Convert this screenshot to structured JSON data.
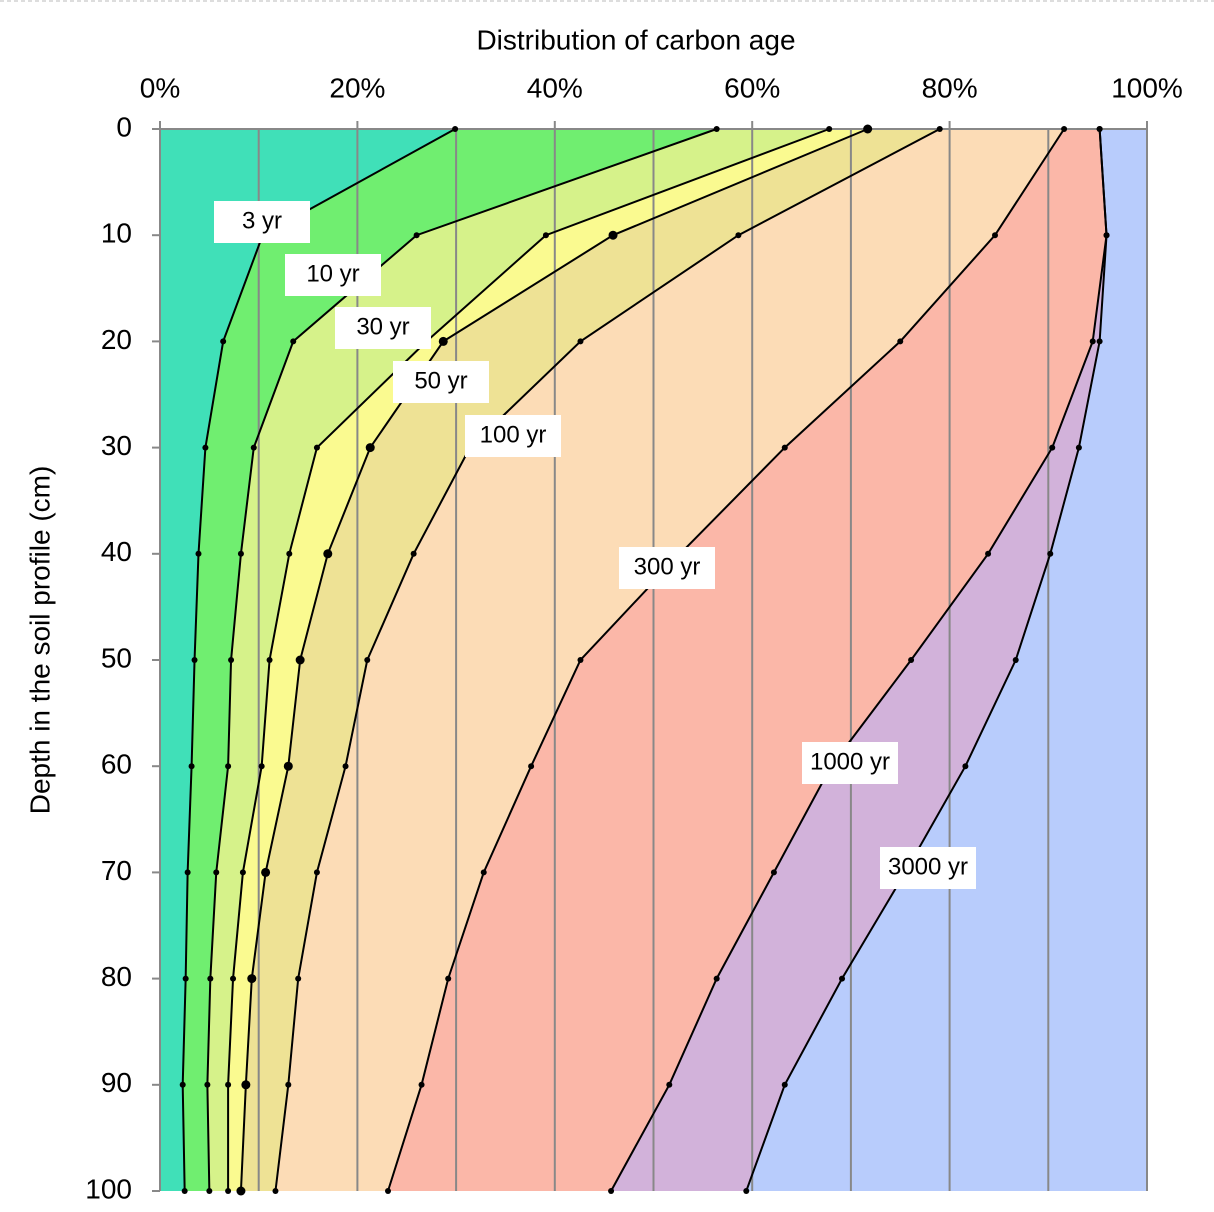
{
  "chart_data": {
    "type": "stacked-depth-lines",
    "title": "Distribution of carbon age",
    "y_label": "Depth in the soil profile (cm)",
    "x": [
      0,
      10,
      20,
      30,
      40,
      50,
      60,
      70,
      80,
      90,
      100
    ],
    "xlim": [
      0,
      100
    ],
    "xticks": [
      {
        "value": 0,
        "label": "0%"
      },
      {
        "value": 20,
        "label": "20%"
      },
      {
        "value": 40,
        "label": "40%"
      },
      {
        "value": 60,
        "label": "60%"
      },
      {
        "value": 80,
        "label": "80%"
      },
      {
        "value": 100,
        "label": "100%"
      }
    ],
    "grid_x": [
      0,
      10,
      20,
      30,
      40,
      50,
      60,
      70,
      80,
      90,
      100
    ],
    "ylim": [
      0,
      100
    ],
    "yticks": [
      0,
      10,
      20,
      30,
      40,
      50,
      60,
      70,
      80,
      90,
      100
    ],
    "y_inverted": true,
    "plot_background": "#b8ccfc",
    "series": [
      {
        "name": "3 yr",
        "color": "#40e0b8",
        "values": [
          29.9,
          10.4,
          6.4,
          4.6,
          3.9,
          3.5,
          3.2,
          2.8,
          2.6,
          2.3,
          2.5
        ]
      },
      {
        "name": "10 yr",
        "color": "#70ee70",
        "values": [
          56.4,
          26.0,
          13.5,
          9.5,
          8.2,
          7.2,
          6.9,
          5.7,
          5.1,
          4.8,
          5.0
        ]
      },
      {
        "name": "30 yr",
        "color": "#d6f28a",
        "values": [
          67.8,
          39.1,
          27.0,
          15.9,
          13.1,
          11.1,
          10.3,
          8.4,
          7.4,
          6.9,
          6.9
        ]
      },
      {
        "name": "50 yr",
        "color": "#fafa90",
        "values": [
          71.7,
          45.9,
          28.7,
          21.3,
          17.0,
          14.2,
          13.0,
          10.7,
          9.3,
          8.7,
          8.2
        ]
      },
      {
        "name": "100 yr",
        "color": "#eee295",
        "values": [
          79.0,
          58.6,
          42.6,
          31.4,
          25.7,
          21.0,
          18.8,
          15.9,
          14.0,
          13.0,
          11.7
        ]
      },
      {
        "name": "300 yr",
        "color": "#fcdcb6",
        "values": [
          91.6,
          84.6,
          75.0,
          63.3,
          52.7,
          42.6,
          37.6,
          32.8,
          29.2,
          26.5,
          23.1
        ]
      },
      {
        "name": "1000 yr",
        "color": "#fbb7a8",
        "values": [
          95.2,
          95.9,
          94.5,
          90.4,
          83.9,
          76.1,
          68.0,
          62.2,
          56.4,
          51.6,
          45.7
        ]
      },
      {
        "name": "3000 yr",
        "color": "#d2b2da",
        "values": [
          95.2,
          95.9,
          95.2,
          93.1,
          90.2,
          86.7,
          81.6,
          75.5,
          69.1,
          63.3,
          59.4
        ]
      }
    ]
  }
}
